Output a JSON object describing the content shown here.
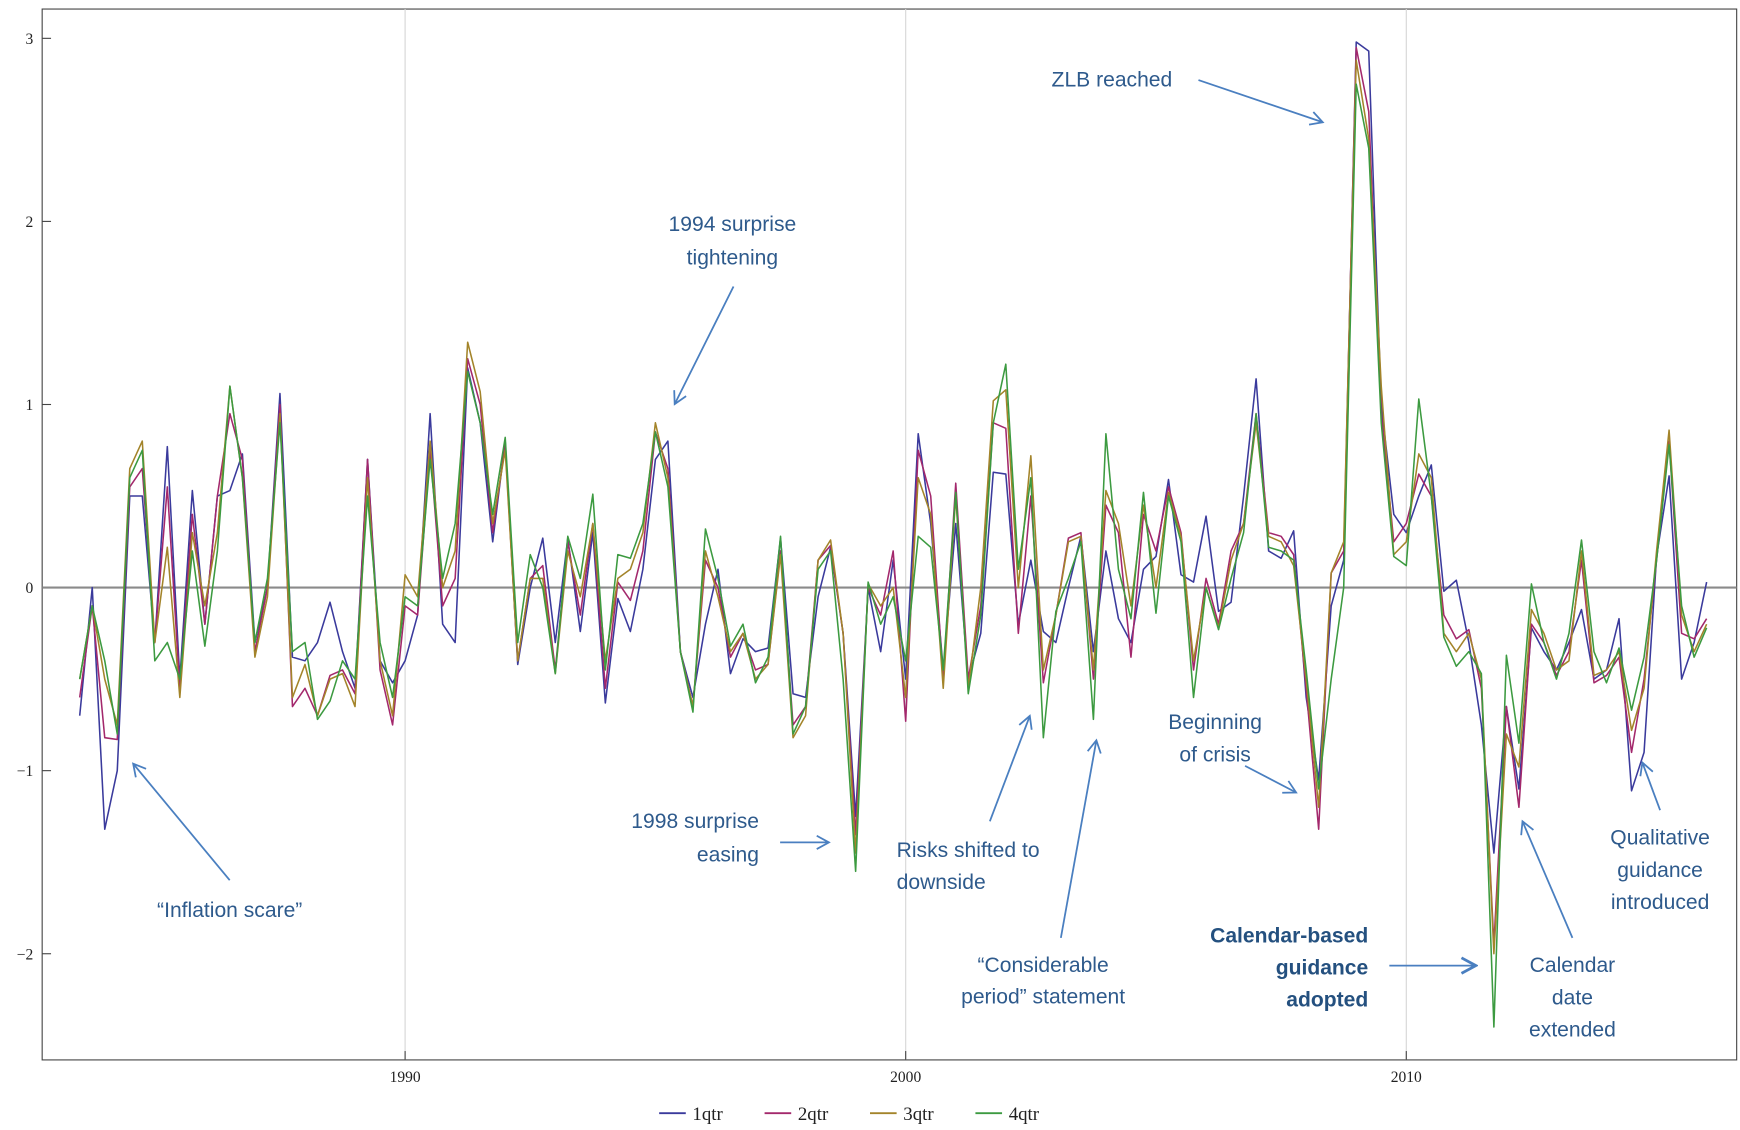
{
  "chart_data": {
    "type": "line",
    "x": [
      1983.5,
      1983.75,
      1984,
      1984.25,
      1984.5,
      1984.75,
      1985,
      1985.25,
      1985.5,
      1985.75,
      1986,
      1986.25,
      1986.5,
      1986.75,
      1987,
      1987.25,
      1987.5,
      1987.75,
      1988,
      1988.25,
      1988.5,
      1988.75,
      1989,
      1989.25,
      1989.5,
      1989.75,
      1990,
      1990.25,
      1990.5,
      1990.75,
      1991,
      1991.25,
      1991.5,
      1991.75,
      1992,
      1992.25,
      1992.5,
      1992.75,
      1993,
      1993.25,
      1993.5,
      1993.75,
      1994,
      1994.25,
      1994.5,
      1994.75,
      1995,
      1995.25,
      1995.5,
      1995.75,
      1996,
      1996.25,
      1996.5,
      1996.75,
      1997,
      1997.25,
      1997.5,
      1997.75,
      1998,
      1998.25,
      1998.5,
      1998.75,
      1999,
      1999.25,
      1999.5,
      1999.75,
      2000,
      2000.25,
      2000.5,
      2000.75,
      2001,
      2001.25,
      2001.5,
      2001.75,
      2002,
      2002.25,
      2002.5,
      2002.75,
      2003,
      2003.25,
      2003.5,
      2003.75,
      2004,
      2004.25,
      2004.5,
      2004.75,
      2005,
      2005.25,
      2005.5,
      2005.75,
      2006,
      2006.25,
      2006.5,
      2006.75,
      2007,
      2007.25,
      2007.5,
      2007.75,
      2008,
      2008.25,
      2008.5,
      2008.75,
      2009,
      2009.25,
      2009.5,
      2009.75,
      2010,
      2010.25,
      2010.5,
      2010.75,
      2011,
      2011.25,
      2011.5,
      2011.75,
      2012,
      2012.25,
      2012.5,
      2012.75,
      2013,
      2013.25,
      2013.5,
      2013.75,
      2014,
      2014.25,
      2014.5,
      2014.75,
      2015,
      2015.25,
      2015.5,
      2015.75,
      2016
    ],
    "series": [
      {
        "name": "1qtr",
        "color": "#3a3a9c",
        "values": [
          -0.7,
          0,
          -1.32,
          -1,
          0.5,
          0.5,
          -0.3,
          0.77,
          -0.5,
          0.53,
          -0.2,
          0.5,
          0.53,
          0.73,
          -0.3,
          0,
          1.06,
          -0.38,
          -0.4,
          -0.3,
          -0.08,
          -0.35,
          -0.55,
          0.7,
          -0.4,
          -0.52,
          -0.4,
          -0.15,
          0.95,
          -0.2,
          -0.3,
          1.2,
          0.9,
          0.25,
          0.8,
          -0.42,
          0,
          0.27,
          -0.3,
          0.27,
          -0.24,
          0.3,
          -0.63,
          -0.06,
          -0.24,
          0.1,
          0.7,
          0.8,
          -0.35,
          -0.6,
          -0.2,
          0.1,
          -0.47,
          -0.28,
          -0.35,
          -0.33,
          0.27,
          -0.58,
          -0.6,
          -0.05,
          0.22,
          -0.25,
          -1.25,
          0,
          -0.35,
          0.15,
          -0.5,
          0.84,
          0.35,
          -0.45,
          0.35,
          -0.5,
          -0.25,
          0.63,
          0.62,
          -0.2,
          0.15,
          -0.24,
          -0.3,
          0,
          0.28,
          -0.35,
          0.2,
          -0.17,
          -0.3,
          0.1,
          0.17,
          0.59,
          0.07,
          0.03,
          0.39,
          -0.13,
          -0.08,
          0.5,
          1.14,
          0.2,
          0.16,
          0.31,
          -0.6,
          -1.05,
          -0.1,
          0.15,
          2.98,
          2.93,
          1,
          0.4,
          0.3,
          0.5,
          0.67,
          -0.02,
          0.04,
          -0.3,
          -0.75,
          -1.45,
          -0.65,
          -1.1,
          -0.22,
          -0.35,
          -0.45,
          -0.3,
          -0.12,
          -0.5,
          -0.45,
          -0.17,
          -1.11,
          -0.9,
          0.17,
          0.61,
          -0.5,
          -0.3,
          0.03
        ]
      },
      {
        "name": "2qtr",
        "color": "#a3286c",
        "values": [
          -0.6,
          -0.1,
          -0.82,
          -0.83,
          0.55,
          0.65,
          -0.3,
          0.55,
          -0.55,
          0.4,
          -0.2,
          0.5,
          0.95,
          0.7,
          -0.35,
          0,
          1,
          -0.65,
          -0.55,
          -0.7,
          -0.48,
          -0.45,
          -0.58,
          0.7,
          -0.45,
          -0.75,
          -0.1,
          -0.15,
          0.75,
          -0.1,
          0.05,
          1.25,
          1,
          0.3,
          0.78,
          -0.4,
          0.05,
          0.12,
          -0.45,
          0.25,
          -0.15,
          0.35,
          -0.55,
          0.03,
          -0.07,
          0.2,
          0.85,
          0.65,
          -0.35,
          -0.65,
          0.15,
          0,
          -0.38,
          -0.25,
          -0.45,
          -0.42,
          0.2,
          -0.75,
          -0.65,
          0.15,
          0.23,
          -0.25,
          -1.35,
          0,
          -0.15,
          0.2,
          -0.73,
          0.75,
          0.5,
          -0.5,
          0.57,
          -0.5,
          -0.1,
          0.9,
          0.87,
          -0.25,
          0.5,
          -0.52,
          -0.15,
          0.27,
          0.3,
          -0.5,
          0.45,
          0.3,
          -0.38,
          0.4,
          0.2,
          0.55,
          0.3,
          -0.45,
          0.05,
          -0.2,
          0.2,
          0.35,
          0.95,
          0.3,
          0.28,
          0.18,
          -0.55,
          -1.32,
          0.08,
          0.2,
          2.95,
          2.6,
          0.95,
          0.25,
          0.35,
          0.62,
          0.5,
          -0.15,
          -0.28,
          -0.23,
          -0.55,
          -1.95,
          -0.65,
          -1.2,
          -0.2,
          -0.3,
          -0.48,
          -0.35,
          0.15,
          -0.52,
          -0.48,
          -0.38,
          -0.9,
          -0.5,
          0.15,
          0.8,
          -0.25,
          -0.28,
          -0.17
        ]
      },
      {
        "name": "3qtr",
        "color": "#a3842a",
        "values": [
          -0.5,
          -0.1,
          -0.5,
          -0.75,
          0.65,
          0.8,
          -0.3,
          0.22,
          -0.6,
          0.3,
          -0.1,
          0.3,
          1.1,
          0.6,
          -0.38,
          -0.05,
          0.95,
          -0.6,
          -0.42,
          -0.7,
          -0.5,
          -0.47,
          -0.65,
          0.6,
          -0.4,
          -0.7,
          0.07,
          -0.05,
          0.8,
          0,
          0.2,
          1.34,
          1.07,
          0.35,
          0.75,
          -0.4,
          0.05,
          0.05,
          -0.47,
          0.2,
          -0.05,
          0.35,
          -0.4,
          0.05,
          0.1,
          0.3,
          0.9,
          0.6,
          -0.35,
          -0.65,
          0.2,
          -0.05,
          -0.35,
          -0.25,
          -0.5,
          -0.42,
          0.18,
          -0.82,
          -0.7,
          0.15,
          0.26,
          -0.25,
          -1.45,
          0.02,
          -0.1,
          0,
          -0.6,
          0.6,
          0.4,
          -0.55,
          0.5,
          -0.55,
          0,
          1.02,
          1.08,
          0,
          0.72,
          -0.45,
          -0.15,
          0.25,
          0.28,
          -0.45,
          0.53,
          0.35,
          -0.1,
          0.45,
          0,
          0.52,
          0.28,
          -0.4,
          0,
          -0.22,
          0.15,
          0.35,
          0.9,
          0.28,
          0.25,
          0.12,
          -0.5,
          -1.2,
          0.08,
          0.25,
          2.88,
          2.45,
          1.1,
          0.18,
          0.25,
          0.73,
          0.6,
          -0.25,
          -0.35,
          -0.25,
          -0.5,
          -2,
          -0.8,
          -0.98,
          -0.12,
          -0.25,
          -0.45,
          -0.4,
          0.2,
          -0.48,
          -0.45,
          -0.35,
          -0.78,
          -0.55,
          0.2,
          0.86,
          -0.15,
          -0.35,
          -0.2
        ]
      },
      {
        "name": "4qtr",
        "color": "#3c9a40",
        "values": [
          -0.5,
          -0.1,
          -0.4,
          -0.8,
          0.6,
          0.75,
          -0.4,
          -0.3,
          -0.5,
          0.2,
          -0.32,
          0.2,
          1.1,
          0.6,
          -0.3,
          0.05,
          0.9,
          -0.35,
          -0.3,
          -0.72,
          -0.62,
          -0.4,
          -0.5,
          0.5,
          -0.3,
          -0.6,
          -0.05,
          -0.1,
          0.7,
          0.05,
          0.35,
          1.18,
          0.9,
          0.4,
          0.82,
          -0.3,
          0.18,
          0,
          -0.47,
          0.28,
          0.05,
          0.51,
          -0.45,
          0.18,
          0.16,
          0.35,
          0.85,
          0.55,
          -0.35,
          -0.68,
          0.32,
          0.05,
          -0.32,
          -0.2,
          -0.52,
          -0.38,
          0.28,
          -0.8,
          -0.65,
          0.1,
          0.2,
          -0.5,
          -1.55,
          0.03,
          -0.2,
          -0.05,
          -0.4,
          0.28,
          0.22,
          -0.45,
          0.52,
          -0.58,
          -0.15,
          0.9,
          1.22,
          0.1,
          0.6,
          -0.82,
          -0.13,
          0.05,
          0.25,
          -0.72,
          0.84,
          0.1,
          -0.17,
          0.52,
          -0.14,
          0.5,
          0.25,
          -0.6,
          0,
          -0.23,
          0.05,
          0.3,
          0.95,
          0.22,
          0.2,
          0.15,
          -0.45,
          -1.1,
          -0.5,
          0,
          2.75,
          2.4,
          0.9,
          0.17,
          0.12,
          1.03,
          0.5,
          -0.27,
          -0.43,
          -0.35,
          -0.47,
          -2.4,
          -0.37,
          -0.85,
          0.02,
          -0.3,
          -0.5,
          -0.25,
          0.26,
          -0.35,
          -0.52,
          -0.33,
          -0.67,
          -0.38,
          0.15,
          0.78,
          -0.1,
          -0.38,
          -0.22
        ]
      }
    ],
    "xlim": [
      1982.75,
      2016.6
    ],
    "xticks": [
      1990,
      2000,
      2010
    ],
    "ylim": [
      -2.58,
      3.16
    ],
    "yticks": [
      3,
      2,
      1,
      0,
      {
        "value": -1,
        "label": "−1"
      },
      {
        "value": -2,
        "label": "−2"
      }
    ],
    "xgrid": true,
    "zero_line": true,
    "legend": "bottom",
    "annotations": [
      {
        "lines": [
          "ZLB reached"
        ]
      },
      {
        "lines": [
          "1994 surprise",
          "tightening"
        ]
      },
      {
        "lines": [
          "“Inflation scare”"
        ]
      },
      {
        "lines": [
          "1998 surprise",
          "easing"
        ]
      },
      {
        "lines": [
          "Risks shifted to",
          "downside"
        ]
      },
      {
        "lines": [
          "“Considerable",
          "period” statement"
        ]
      },
      {
        "lines": [
          "Beginning",
          "of crisis"
        ]
      },
      {
        "lines": [
          "Calendar-based",
          "guidance",
          "adopted"
        ]
      },
      {
        "lines": [
          "Calendar",
          "date",
          "extended"
        ]
      },
      {
        "lines": [
          "Qualitative",
          "guidance",
          "introduced"
        ]
      }
    ]
  }
}
